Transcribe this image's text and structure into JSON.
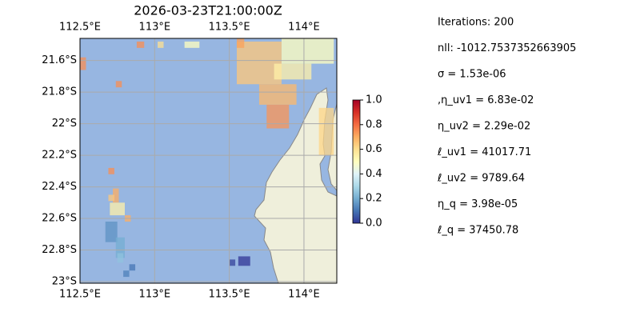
{
  "chart_data": {
    "type": "heatmap",
    "title": "2026-03-23T21:00:00Z",
    "xlim": [
      112.5,
      114.22
    ],
    "ylim": [
      -23.01,
      -21.46
    ],
    "xticks": [
      {
        "value": 112.5,
        "label": "112.5°E"
      },
      {
        "value": 113,
        "label": "113°E"
      },
      {
        "value": 113.5,
        "label": "113.5°E"
      },
      {
        "value": 114,
        "label": "114°E"
      }
    ],
    "yticks": [
      {
        "value": -21.6,
        "label": "21.6°S"
      },
      {
        "value": -21.8,
        "label": "21.8°S"
      },
      {
        "value": -22,
        "label": "22°S"
      },
      {
        "value": -22.2,
        "label": "22.2°S"
      },
      {
        "value": -22.4,
        "label": "22.4°S"
      },
      {
        "value": -22.6,
        "label": "22.6°S"
      },
      {
        "value": -22.8,
        "label": "22.8°S"
      },
      {
        "value": -23,
        "label": "23°S"
      }
    ],
    "grid": true,
    "colormap": [
      "#313695",
      "#4575b4",
      "#74add1",
      "#abd9e9",
      "#e0f3f8",
      "#ffffbf",
      "#fee090",
      "#fdae61",
      "#f46d43",
      "#d73027",
      "#a50026"
    ],
    "clim": [
      0,
      1
    ],
    "cticks": [
      {
        "value": 0,
        "label": "0.0"
      },
      {
        "value": 0.2,
        "label": "0.2"
      },
      {
        "value": 0.4,
        "label": "0.4"
      },
      {
        "value": 0.6,
        "label": "0.6"
      },
      {
        "value": 0.8,
        "label": "0.8"
      },
      {
        "value": 1,
        "label": "1.0"
      }
    ],
    "cells": [
      {
        "lon": [
          113.55,
          113.85
        ],
        "lat": [
          -21.48,
          -21.75
        ],
        "value": 0.65
      },
      {
        "lon": [
          113.85,
          114.2
        ],
        "lat": [
          -21.46,
          -21.62
        ],
        "value": 0.5
      },
      {
        "lon": [
          113.8,
          114.05
        ],
        "lat": [
          -21.62,
          -21.72
        ],
        "value": 0.55
      },
      {
        "lon": [
          113.7,
          113.95
        ],
        "lat": [
          -21.75,
          -21.88
        ],
        "value": 0.68
      },
      {
        "lon": [
          113.75,
          113.9
        ],
        "lat": [
          -21.88,
          -22.03
        ],
        "value": 0.74
      },
      {
        "lon": [
          114.1,
          114.2
        ],
        "lat": [
          -21.9,
          -22.2
        ],
        "value": 0.62
      },
      {
        "lon": [
          113.55,
          113.6
        ],
        "lat": [
          -21.46,
          -21.52
        ],
        "value": 0.72
      },
      {
        "lon": [
          113.2,
          113.3
        ],
        "lat": [
          -21.48,
          -21.52
        ],
        "value": 0.5
      },
      {
        "lon": [
          112.88,
          112.93
        ],
        "lat": [
          -21.48,
          -21.52
        ],
        "value": 0.75
      },
      {
        "lon": [
          113.02,
          113.06
        ],
        "lat": [
          -21.48,
          -21.52
        ],
        "value": 0.6
      },
      {
        "lon": [
          112.5,
          112.54
        ],
        "lat": [
          -21.58,
          -21.66
        ],
        "value": 0.75
      },
      {
        "lon": [
          112.74,
          112.78
        ],
        "lat": [
          -21.73,
          -21.77
        ],
        "value": 0.75
      },
      {
        "lon": [
          112.69,
          112.73
        ],
        "lat": [
          -22.28,
          -22.32
        ],
        "value": 0.75
      },
      {
        "lon": [
          112.72,
          112.76
        ],
        "lat": [
          -22.41,
          -22.5
        ],
        "value": 0.7
      },
      {
        "lon": [
          112.69,
          112.73
        ],
        "lat": [
          -22.45,
          -22.49
        ],
        "value": 0.65
      },
      {
        "lon": [
          112.7,
          112.8
        ],
        "lat": [
          -22.5,
          -22.58
        ],
        "value": 0.55
      },
      {
        "lon": [
          112.8,
          112.84
        ],
        "lat": [
          -22.58,
          -22.62
        ],
        "value": 0.7
      },
      {
        "lon": [
          112.67,
          112.75
        ],
        "lat": [
          -22.62,
          -22.75
        ],
        "value": 0.15
      },
      {
        "lon": [
          112.74,
          112.8
        ],
        "lat": [
          -22.72,
          -22.85
        ],
        "value": 0.2
      },
      {
        "lon": [
          112.75,
          112.79
        ],
        "lat": [
          -22.82,
          -22.88
        ],
        "value": 0.25
      },
      {
        "lon": [
          112.83,
          112.87
        ],
        "lat": [
          -22.89,
          -22.93
        ],
        "value": 0.1
      },
      {
        "lon": [
          112.79,
          112.83
        ],
        "lat": [
          -22.93,
          -22.97
        ],
        "value": 0.12
      },
      {
        "lon": [
          113.5,
          113.54
        ],
        "lat": [
          -22.86,
          -22.9
        ],
        "value": 0.02
      },
      {
        "lon": [
          113.56,
          113.64
        ],
        "lat": [
          -22.84,
          -22.9
        ],
        "value": 0
      }
    ]
  },
  "annotations": [
    "Iterations: 200",
    "nll: -1012.7537352663905",
    "σ = 1.53e-06",
    ",η_uv1 = 6.83e-02",
    "η_uv2 = 2.29e-02",
    "ℓ_uv1 = 41017.71",
    "ℓ_uv2 = 9789.64",
    "η_q = 3.98e-05",
    "ℓ_q = 37450.78"
  ]
}
